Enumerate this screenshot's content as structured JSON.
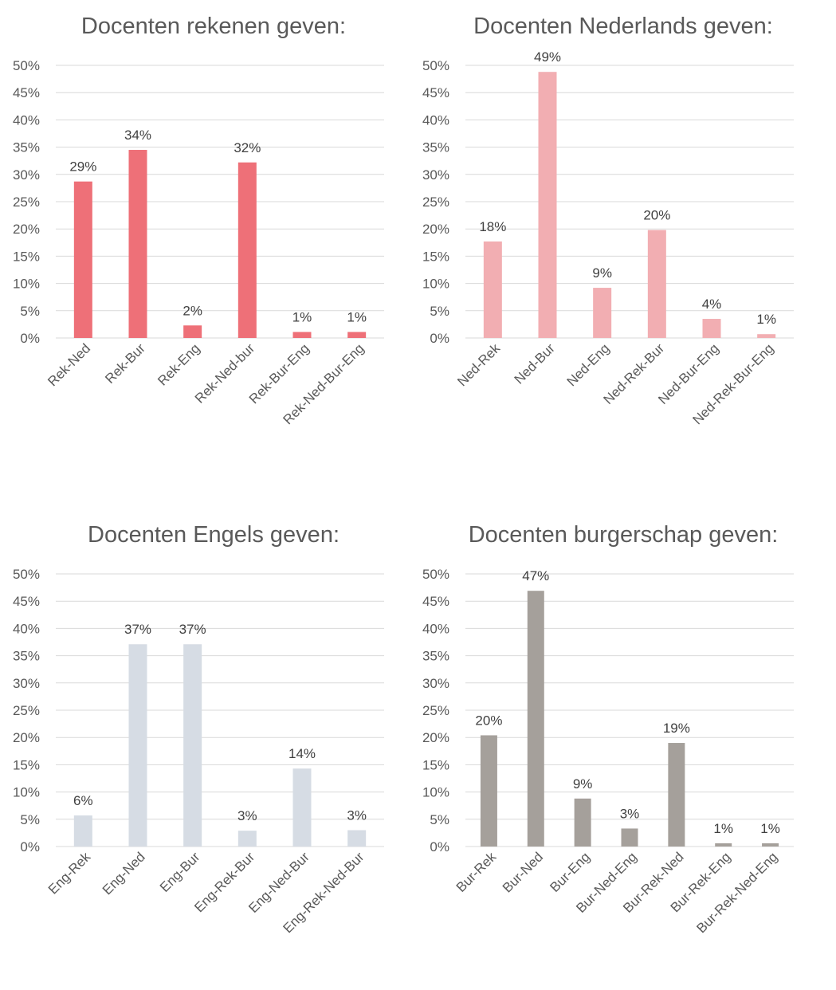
{
  "chart_data": [
    {
      "type": "bar",
      "title": "Docenten rekenen geven:",
      "categories": [
        "Rek-Ned",
        "Rek-Bur",
        "Rek-Eng",
        "Rek-Ned-bur",
        "Rek-Bur-Eng",
        "Rek-Ned-Bur-Eng"
      ],
      "values": [
        0.287,
        0.345,
        0.023,
        0.322,
        0.011,
        0.011
      ],
      "labels": [
        "29%",
        "34%",
        "2%",
        "32%",
        "1%",
        "1%"
      ],
      "color": "#ee7078",
      "ylim": [
        0,
        0.5
      ],
      "yticks": [
        "0%",
        "5%",
        "10%",
        "15%",
        "20%",
        "25%",
        "30%",
        "35%",
        "40%",
        "45%",
        "50%"
      ],
      "grid": true
    },
    {
      "type": "bar",
      "title": "Docenten Nederlands geven:",
      "categories": [
        "Ned-Rek",
        "Ned-Bur",
        "Ned-Eng",
        "Ned-Rek-Bur",
        "Ned-Bur-Eng",
        "Ned-Rek-Bur-Eng"
      ],
      "values": [
        0.177,
        0.488,
        0.092,
        0.198,
        0.035,
        0.007
      ],
      "labels": [
        "18%",
        "49%",
        "9%",
        "20%",
        "4%",
        "1%"
      ],
      "color": "#f2aeb2",
      "ylim": [
        0,
        0.5
      ],
      "yticks": [
        "0%",
        "5%",
        "10%",
        "15%",
        "20%",
        "25%",
        "30%",
        "35%",
        "40%",
        "45%",
        "50%"
      ],
      "grid": true
    },
    {
      "type": "bar",
      "title": "Docenten Engels geven:",
      "categories": [
        "Eng-Rek",
        "Eng-Ned",
        "Eng-Bur",
        "Eng-Rek-Bur",
        "Eng-Ned-Bur",
        "Eng-Rek-Ned-Bur"
      ],
      "values": [
        0.057,
        0.371,
        0.371,
        0.029,
        0.143,
        0.03
      ],
      "labels": [
        "6%",
        "37%",
        "37%",
        "3%",
        "14%",
        "3%"
      ],
      "color": "#d6dce4",
      "ylim": [
        0,
        0.5
      ],
      "yticks": [
        "0%",
        "5%",
        "10%",
        "15%",
        "20%",
        "25%",
        "30%",
        "35%",
        "40%",
        "45%",
        "50%"
      ],
      "grid": true
    },
    {
      "type": "bar",
      "title": "Docenten burgerschap geven:",
      "categories": [
        "Bur-Rek",
        "Bur-Ned",
        "Bur-Eng",
        "Bur-Ned-Eng",
        "Bur-Rek-Ned",
        "Bur-Rek-Eng",
        "Bur-Rek-Ned-Eng"
      ],
      "values": [
        0.204,
        0.469,
        0.088,
        0.033,
        0.19,
        0.006,
        0.006
      ],
      "labels": [
        "20%",
        "47%",
        "9%",
        "3%",
        "19%",
        "1%",
        "1%"
      ],
      "color": "#a5a09b",
      "ylim": [
        0,
        0.5
      ],
      "yticks": [
        "0%",
        "5%",
        "10%",
        "15%",
        "20%",
        "25%",
        "30%",
        "35%",
        "40%",
        "45%",
        "50%"
      ],
      "grid": true
    }
  ]
}
